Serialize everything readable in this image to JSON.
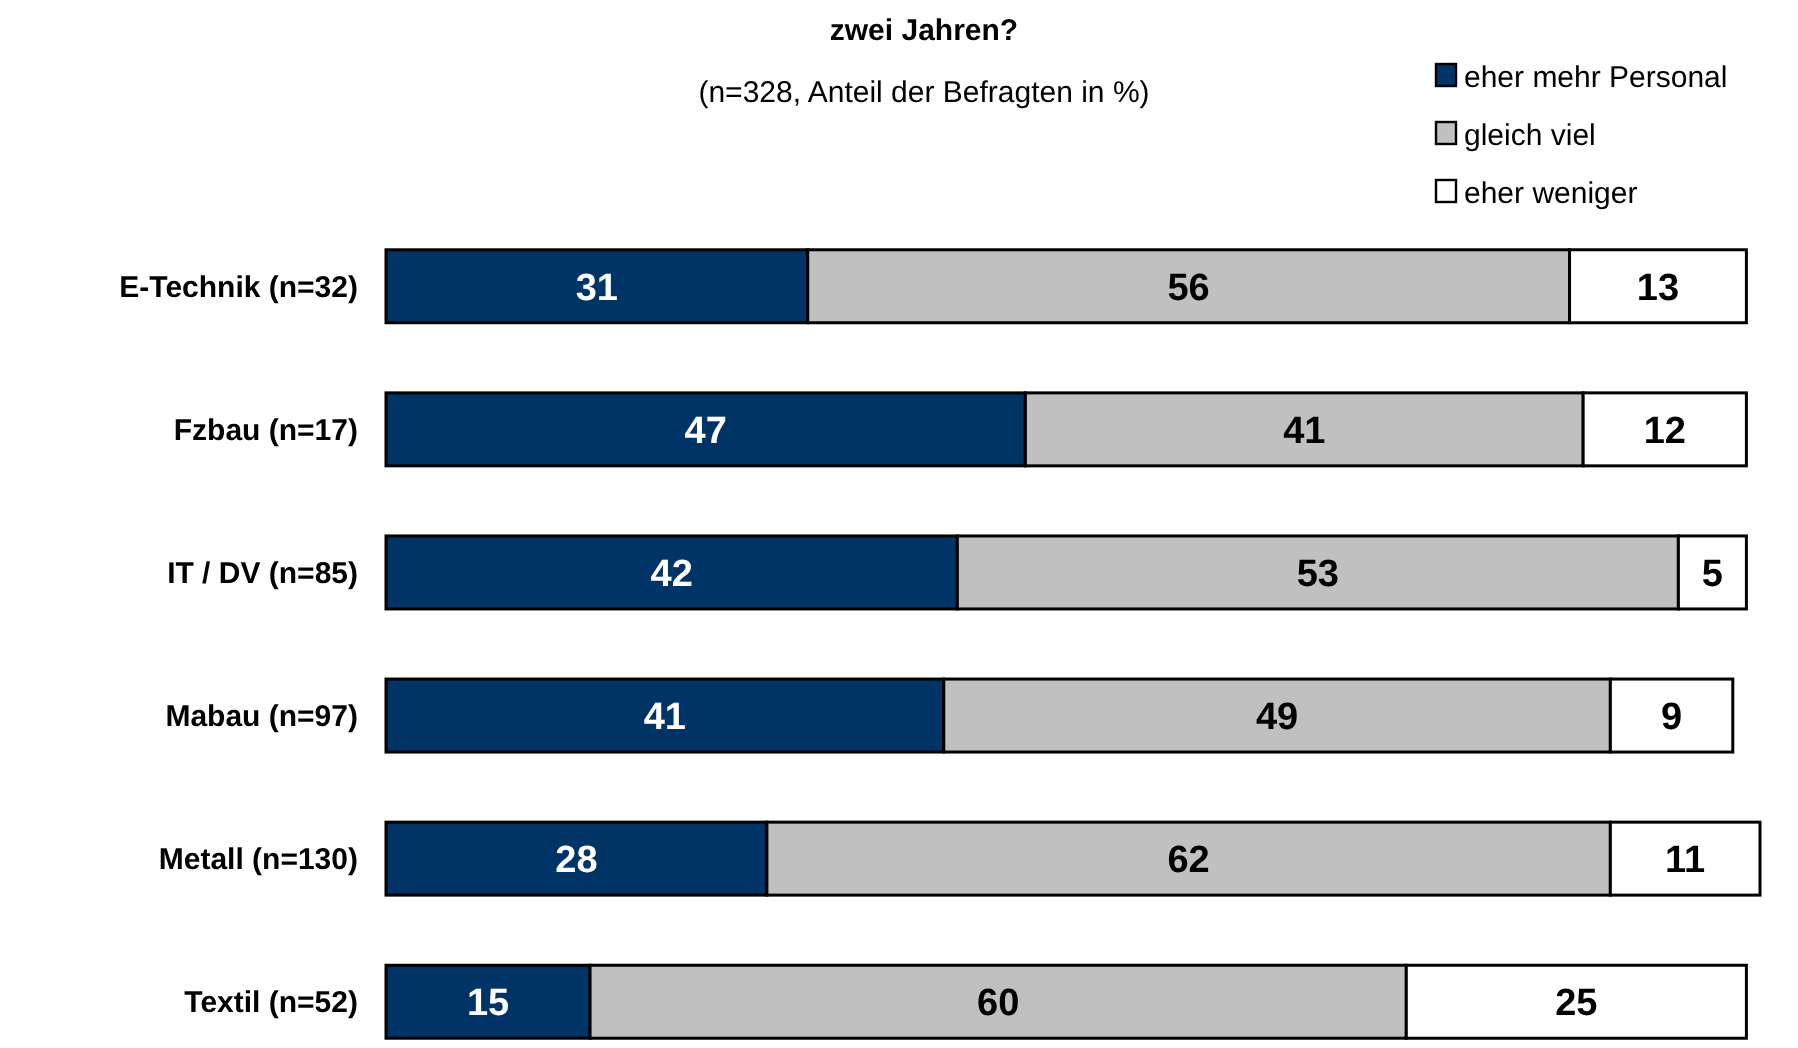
{
  "chart_data": {
    "type": "bar",
    "orientation": "horizontal",
    "stacked": true,
    "data_labels": true,
    "legend": "top right",
    "title": "zwei Jahren?",
    "subtitle": "(n=328, Anteil der Befragten in %)",
    "categories": [
      "E-Technik (n=32)",
      "Fzbau (n=17)",
      "IT / DV (n=85)",
      "Mabau (n=97)",
      "Metall (n=130)",
      "Textil (n=52)"
    ],
    "series": [
      {
        "name": "eher mehr Personal",
        "color": "#003366",
        "values": [
          31,
          47,
          42,
          41,
          28,
          15
        ]
      },
      {
        "name": "gleich viel",
        "color": "#c0c0c0",
        "values": [
          56,
          41,
          53,
          49,
          62,
          60
        ]
      },
      {
        "name": "eher weniger",
        "color": "#ffffff",
        "values": [
          13,
          12,
          5,
          9,
          11,
          25
        ]
      }
    ]
  }
}
